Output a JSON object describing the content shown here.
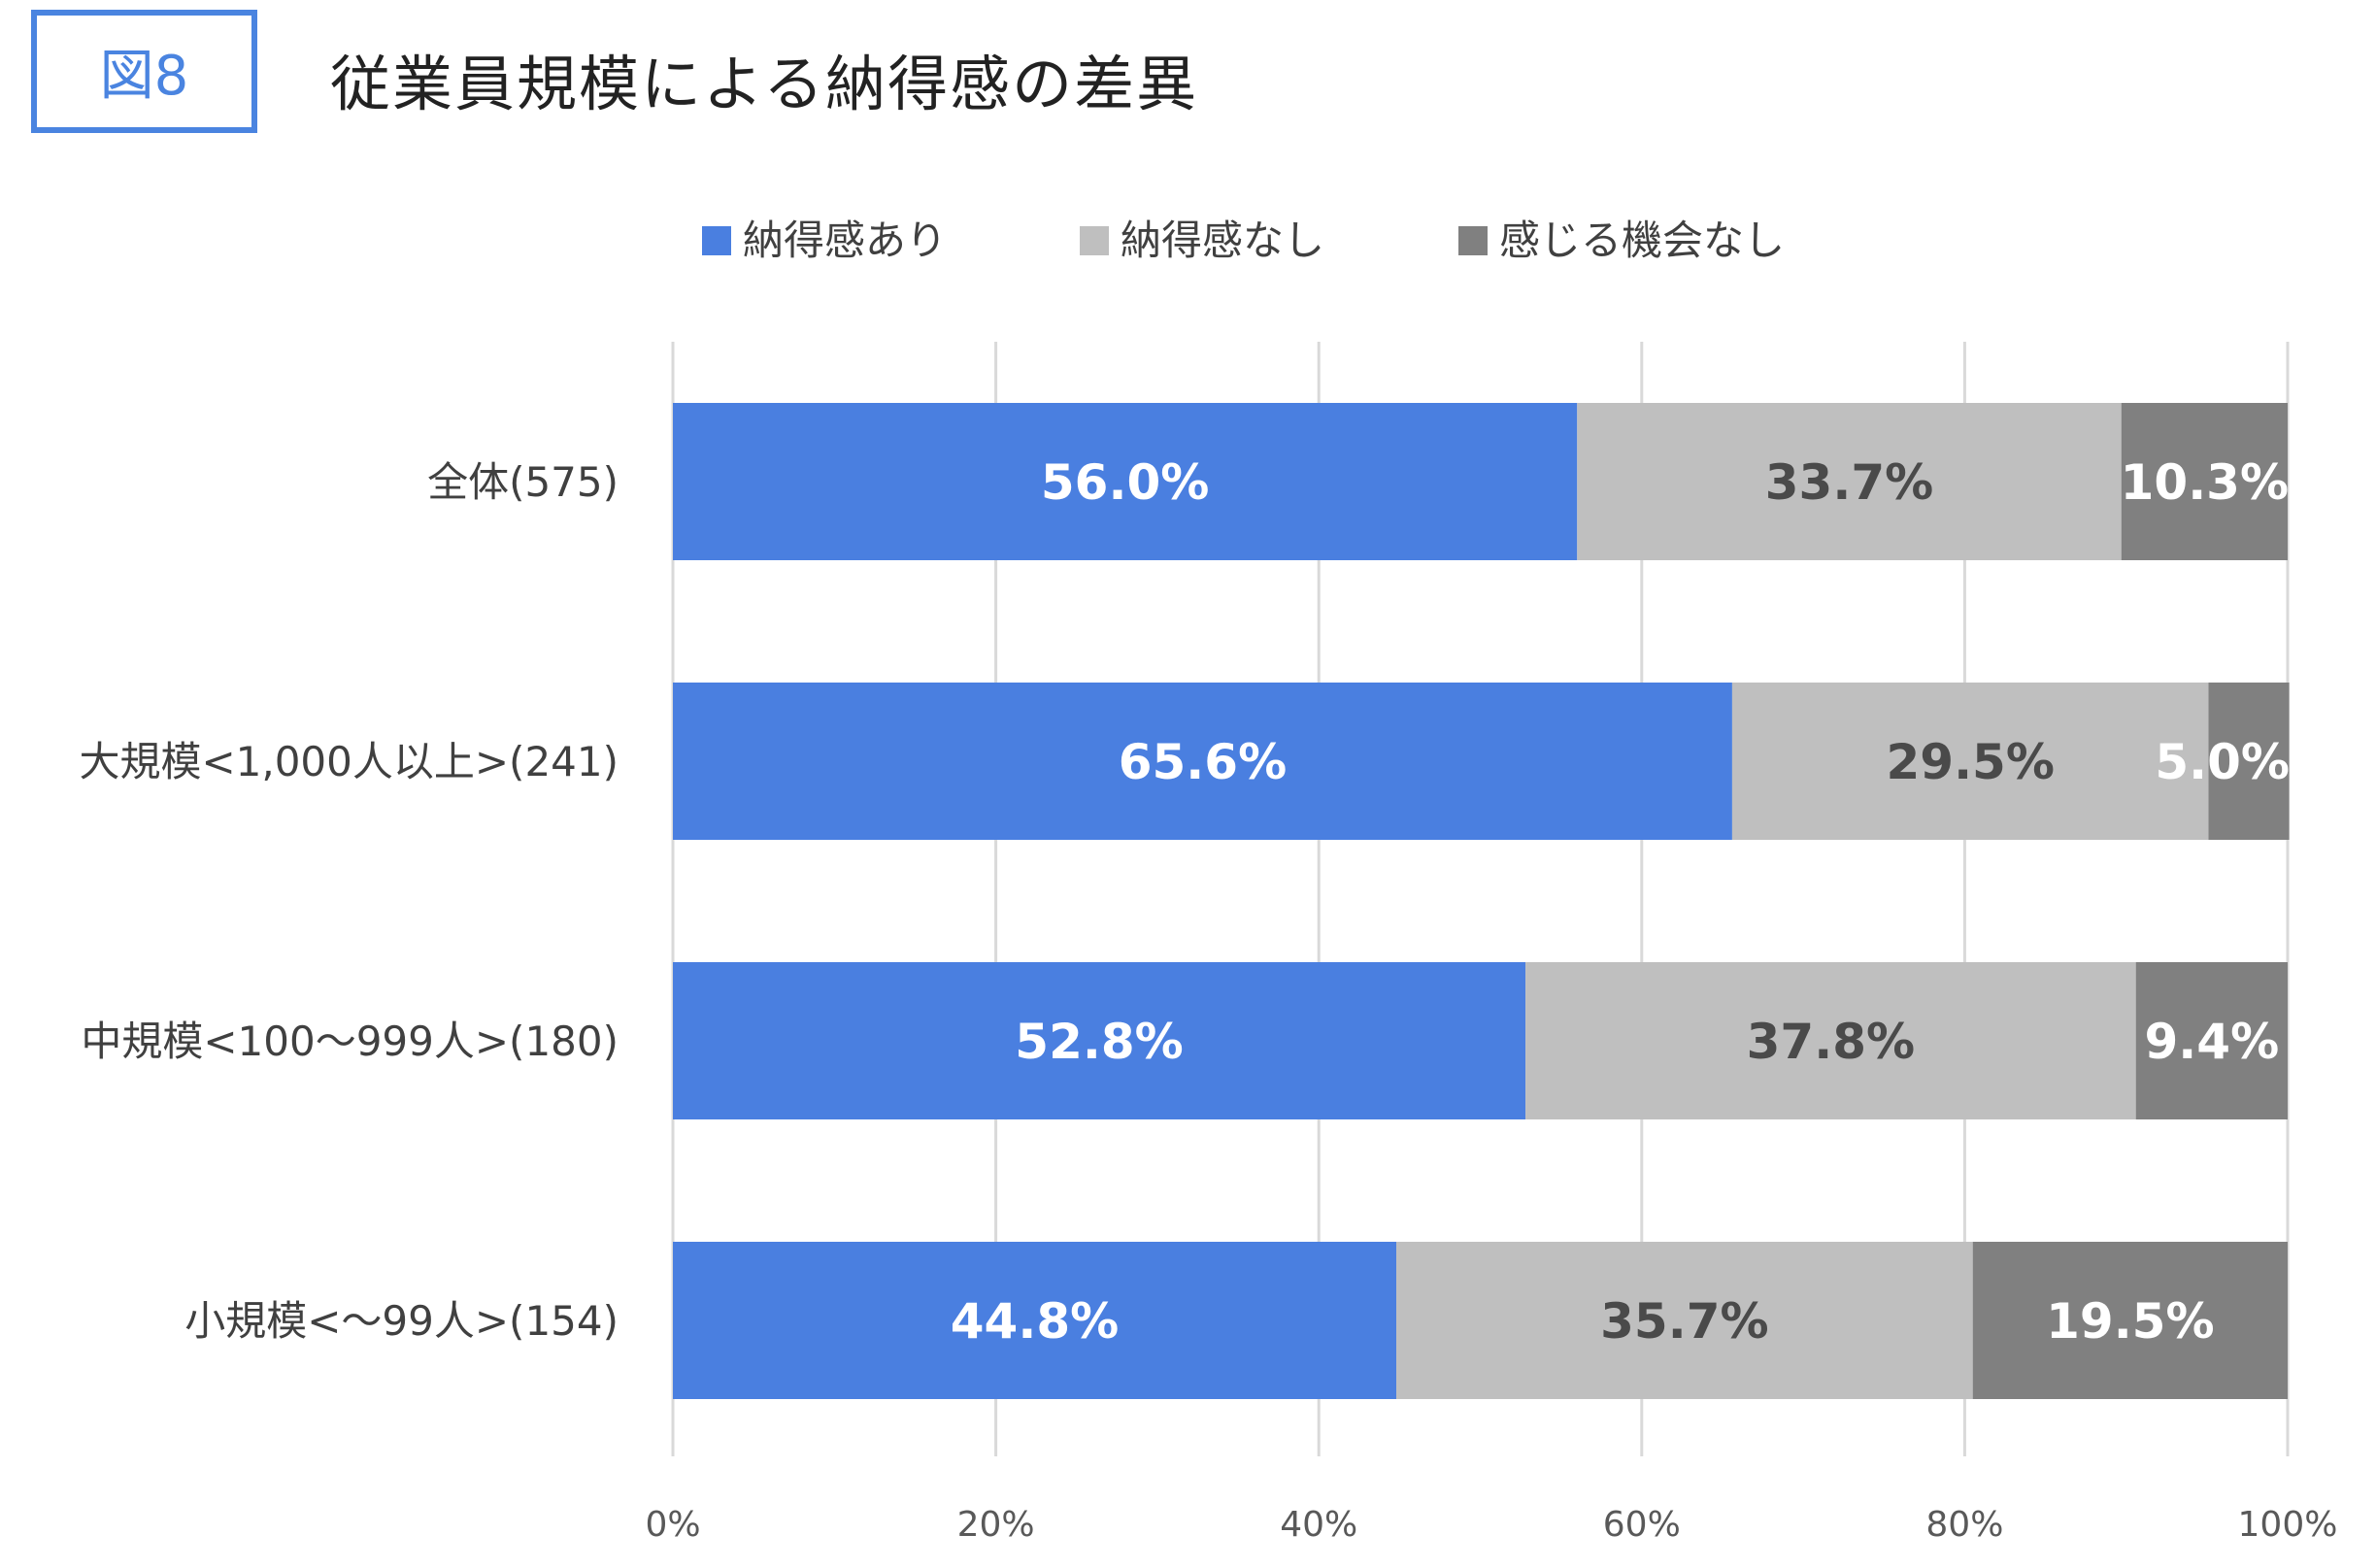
{
  "figure": {
    "badge": "図8",
    "title": "従業員規模による納得感の差異"
  },
  "colors": {
    "accent": "#4a84e0",
    "bar_yes": "#4a7fe0",
    "bar_no": "#bfbfbf",
    "bar_none": "#808080",
    "label_dark": "#4a4a4a",
    "label_light": "#ffffff",
    "grid": "#d9d9d9"
  },
  "chart_data": {
    "type": "bar",
    "orientation": "horizontal",
    "stacked": "percent",
    "categories": [
      "全体(575)",
      "大規模<1,000人以上>(241)",
      "中規模<100〜999人>(180)",
      "小規模<〜99人>(154)"
    ],
    "series": [
      {
        "name": "納得感あり",
        "values": [
          56.0,
          65.6,
          52.8,
          44.8
        ],
        "labels": [
          "56.0%",
          "65.6%",
          "52.8%",
          "44.8%"
        ]
      },
      {
        "name": "納得感なし",
        "values": [
          33.7,
          29.5,
          37.8,
          35.7
        ],
        "labels": [
          "33.7%",
          "29.5%",
          "37.8%",
          "35.7%"
        ]
      },
      {
        "name": "感じる機会なし",
        "values": [
          10.3,
          5.0,
          9.4,
          19.5
        ],
        "labels": [
          "10.3%",
          "5.0%",
          "9.4%",
          "19.5%"
        ]
      }
    ],
    "xlim": [
      0,
      100
    ],
    "xticks": [
      "0%",
      "20%",
      "40%",
      "60%",
      "80%",
      "100%"
    ],
    "legend_position": "top",
    "grid": true
  }
}
